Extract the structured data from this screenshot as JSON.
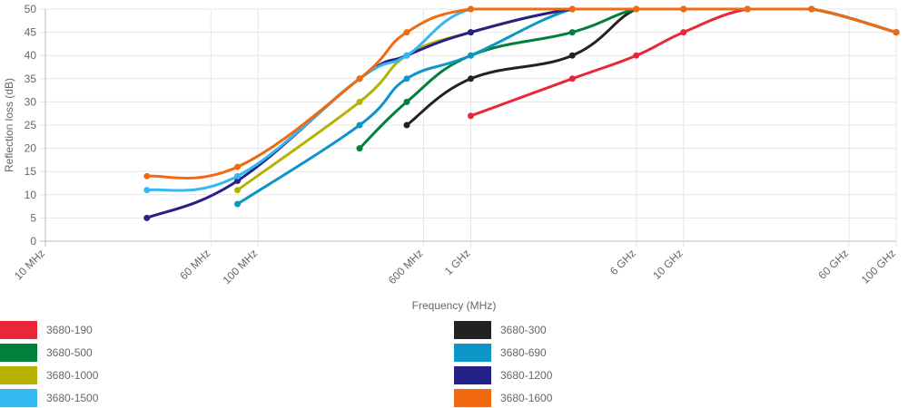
{
  "chart_data": {
    "type": "line",
    "xscale": "log",
    "xlabel": "Frequency (MHz)",
    "ylabel": "Reflection loss (dB)",
    "xlim": [
      10,
      100000
    ],
    "ylim": [
      0,
      50
    ],
    "grid": true,
    "legend_position": "bottom",
    "x_ticks": [
      {
        "value": 10,
        "label": "10 MHz"
      },
      {
        "value": 60,
        "label": "60 MHz"
      },
      {
        "value": 100,
        "label": "100 MHz"
      },
      {
        "value": 600,
        "label": "600 MHz"
      },
      {
        "value": 1000,
        "label": "1 GHz"
      },
      {
        "value": 6000,
        "label": "6 GHz"
      },
      {
        "value": 10000,
        "label": "10 GHz"
      },
      {
        "value": 60000,
        "label": "60 GHz"
      },
      {
        "value": 100000,
        "label": "100 GHz"
      }
    ],
    "y_ticks": [
      0,
      5,
      10,
      15,
      20,
      25,
      30,
      35,
      40,
      45,
      50
    ],
    "series": [
      {
        "name": "3680-190",
        "color": "#e8273b",
        "points": [
          [
            1000,
            27
          ],
          [
            3000,
            35
          ],
          [
            6000,
            40
          ],
          [
            10000,
            45
          ],
          [
            20000,
            50
          ],
          [
            40000,
            50
          ],
          [
            100000,
            45
          ]
        ]
      },
      {
        "name": "3680-300",
        "color": "#222222",
        "points": [
          [
            500,
            25
          ],
          [
            1000,
            35
          ],
          [
            3000,
            40
          ],
          [
            6000,
            50
          ],
          [
            10000,
            50
          ],
          [
            20000,
            50
          ],
          [
            40000,
            50
          ],
          [
            100000,
            45
          ]
        ]
      },
      {
        "name": "3680-500",
        "color": "#00803a",
        "points": [
          [
            300,
            20
          ],
          [
            500,
            30
          ],
          [
            1000,
            40
          ],
          [
            3000,
            45
          ],
          [
            6000,
            50
          ],
          [
            10000,
            50
          ],
          [
            20000,
            50
          ],
          [
            40000,
            50
          ],
          [
            100000,
            45
          ]
        ]
      },
      {
        "name": "3680-690",
        "color": "#0b96c7",
        "points": [
          [
            80,
            8
          ],
          [
            300,
            25
          ],
          [
            500,
            35
          ],
          [
            1000,
            40
          ],
          [
            3000,
            50
          ],
          [
            6000,
            50
          ],
          [
            10000,
            50
          ],
          [
            20000,
            50
          ],
          [
            40000,
            50
          ],
          [
            100000,
            45
          ]
        ]
      },
      {
        "name": "3680-1000",
        "color": "#b5b300",
        "points": [
          [
            80,
            11
          ],
          [
            300,
            30
          ],
          [
            500,
            40
          ],
          [
            1000,
            45
          ],
          [
            3000,
            50
          ],
          [
            6000,
            50
          ],
          [
            10000,
            50
          ],
          [
            20000,
            50
          ],
          [
            40000,
            50
          ],
          [
            100000,
            45
          ]
        ]
      },
      {
        "name": "3680-1200",
        "color": "#252187",
        "points": [
          [
            30,
            5
          ],
          [
            80,
            13
          ],
          [
            300,
            35
          ],
          [
            500,
            40
          ],
          [
            1000,
            45
          ],
          [
            3000,
            50
          ],
          [
            6000,
            50
          ],
          [
            10000,
            50
          ],
          [
            20000,
            50
          ],
          [
            40000,
            50
          ],
          [
            100000,
            45
          ]
        ]
      },
      {
        "name": "3680-1500",
        "color": "#35b8f0",
        "points": [
          [
            30,
            11
          ],
          [
            80,
            14
          ],
          [
            300,
            35
          ],
          [
            500,
            40
          ],
          [
            1000,
            50
          ],
          [
            3000,
            50
          ],
          [
            6000,
            50
          ],
          [
            10000,
            50
          ],
          [
            20000,
            50
          ],
          [
            40000,
            50
          ],
          [
            100000,
            45
          ]
        ]
      },
      {
        "name": "3680-1600",
        "color": "#f26a10",
        "points": [
          [
            30,
            14
          ],
          [
            80,
            16
          ],
          [
            300,
            35
          ],
          [
            500,
            45
          ],
          [
            1000,
            50
          ],
          [
            3000,
            50
          ],
          [
            6000,
            50
          ],
          [
            10000,
            50
          ],
          [
            20000,
            50
          ],
          [
            40000,
            50
          ],
          [
            100000,
            45
          ]
        ]
      }
    ]
  }
}
